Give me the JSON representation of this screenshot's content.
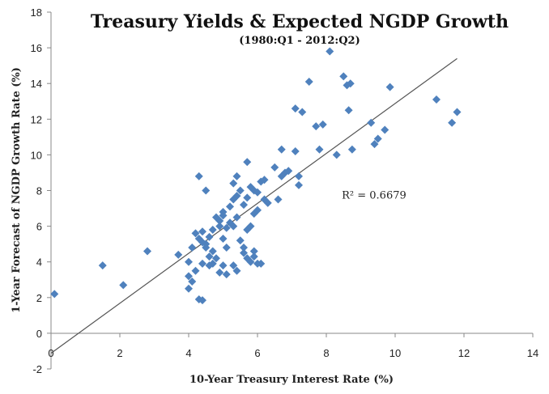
{
  "chart_data": {
    "type": "scatter",
    "title": "Treasury Yields & Expected NGDP Growth",
    "subtitle": "(1980:Q1 - 2012:Q2)",
    "xlabel": "10-Year Treasury Interest Rate (%)",
    "ylabel": "1-Year Forecast  of NGDP Growth Rate (%)",
    "xlim": [
      0,
      14
    ],
    "ylim": [
      -2,
      18
    ],
    "xticks": [
      "0",
      "2",
      "4",
      "6",
      "8",
      "10",
      "12",
      "14"
    ],
    "yticks": [
      "-2",
      "0",
      "2",
      "4",
      "6",
      "8",
      "10",
      "12",
      "14",
      "16",
      "18"
    ],
    "grid": false,
    "marker_color": "#4F81BD",
    "trendline": {
      "type": "linear",
      "slope": 1.4,
      "intercept": -1.12,
      "x_range": [
        0,
        11.8
      ],
      "color": "#555555"
    },
    "annotation": "R² = 0.6679",
    "points": [
      [
        0.1,
        2.2
      ],
      [
        1.5,
        3.8
      ],
      [
        2.1,
        2.7
      ],
      [
        2.8,
        4.6
      ],
      [
        3.7,
        4.4
      ],
      [
        4.0,
        4.0
      ],
      [
        4.0,
        3.2
      ],
      [
        4.0,
        2.5
      ],
      [
        4.1,
        2.9
      ],
      [
        4.2,
        3.5
      ],
      [
        4.3,
        1.9
      ],
      [
        4.4,
        1.85
      ],
      [
        4.3,
        8.8
      ],
      [
        4.5,
        8.0
      ],
      [
        4.4,
        3.9
      ],
      [
        4.6,
        3.8
      ],
      [
        4.7,
        3.9
      ],
      [
        4.9,
        3.4
      ],
      [
        5.0,
        3.8
      ],
      [
        5.1,
        3.3
      ],
      [
        5.4,
        3.5
      ],
      [
        5.3,
        3.8
      ],
      [
        4.2,
        5.6
      ],
      [
        4.3,
        5.3
      ],
      [
        4.4,
        5.7
      ],
      [
        4.5,
        5.0
      ],
      [
        4.6,
        5.4
      ],
      [
        4.7,
        5.8
      ],
      [
        4.8,
        6.5
      ],
      [
        4.9,
        6.3
      ],
      [
        5.0,
        6.8
      ],
      [
        5.0,
        6.6
      ],
      [
        4.9,
        6.0
      ],
      [
        5.1,
        5.9
      ],
      [
        5.2,
        7.1
      ],
      [
        5.3,
        7.5
      ],
      [
        5.4,
        7.7
      ],
      [
        5.5,
        8.0
      ],
      [
        5.4,
        8.8
      ],
      [
        5.3,
        8.4
      ],
      [
        5.6,
        7.2
      ],
      [
        5.7,
        7.6
      ],
      [
        5.7,
        9.6
      ],
      [
        5.8,
        8.2
      ],
      [
        5.9,
        8.0
      ],
      [
        6.0,
        7.9
      ],
      [
        6.1,
        8.5
      ],
      [
        6.2,
        8.6
      ],
      [
        6.2,
        7.5
      ],
      [
        6.3,
        7.3
      ],
      [
        6.5,
        9.3
      ],
      [
        6.6,
        7.5
      ],
      [
        6.7,
        8.8
      ],
      [
        6.7,
        10.3
      ],
      [
        6.8,
        9.0
      ],
      [
        6.9,
        9.1
      ],
      [
        7.1,
        10.2
      ],
      [
        7.1,
        12.6
      ],
      [
        7.2,
        8.3
      ],
      [
        7.2,
        8.8
      ],
      [
        7.3,
        12.4
      ],
      [
        7.5,
        14.1
      ],
      [
        7.7,
        11.6
      ],
      [
        7.8,
        10.3
      ],
      [
        7.9,
        11.7
      ],
      [
        8.1,
        15.8
      ],
      [
        8.3,
        10.0
      ],
      [
        8.5,
        14.4
      ],
      [
        8.6,
        13.9
      ],
      [
        8.7,
        14.0
      ],
      [
        8.65,
        12.5
      ],
      [
        8.75,
        10.3
      ],
      [
        9.3,
        11.8
      ],
      [
        9.4,
        10.6
      ],
      [
        9.5,
        10.9
      ],
      [
        9.7,
        11.4
      ],
      [
        9.85,
        13.8
      ],
      [
        11.2,
        13.1
      ],
      [
        11.65,
        11.8
      ],
      [
        11.8,
        12.4
      ],
      [
        5.5,
        5.2
      ],
      [
        5.6,
        4.8
      ],
      [
        5.6,
        4.5
      ],
      [
        5.7,
        4.2
      ],
      [
        5.8,
        4.0
      ],
      [
        5.9,
        4.3
      ],
      [
        5.9,
        4.6
      ],
      [
        6.0,
        3.9
      ],
      [
        6.1,
        3.9
      ],
      [
        5.7,
        5.8
      ],
      [
        5.8,
        6.0
      ],
      [
        5.9,
        6.7
      ],
      [
        6.0,
        6.9
      ],
      [
        5.4,
        6.5
      ],
      [
        5.2,
        6.2
      ],
      [
        5.1,
        4.8
      ],
      [
        4.7,
        4.6
      ],
      [
        4.8,
        4.2
      ],
      [
        4.6,
        4.3
      ],
      [
        4.5,
        4.8
      ],
      [
        4.4,
        5.1
      ],
      [
        4.1,
        4.8
      ],
      [
        5.0,
        5.3
      ],
      [
        5.3,
        6.0
      ]
    ]
  }
}
